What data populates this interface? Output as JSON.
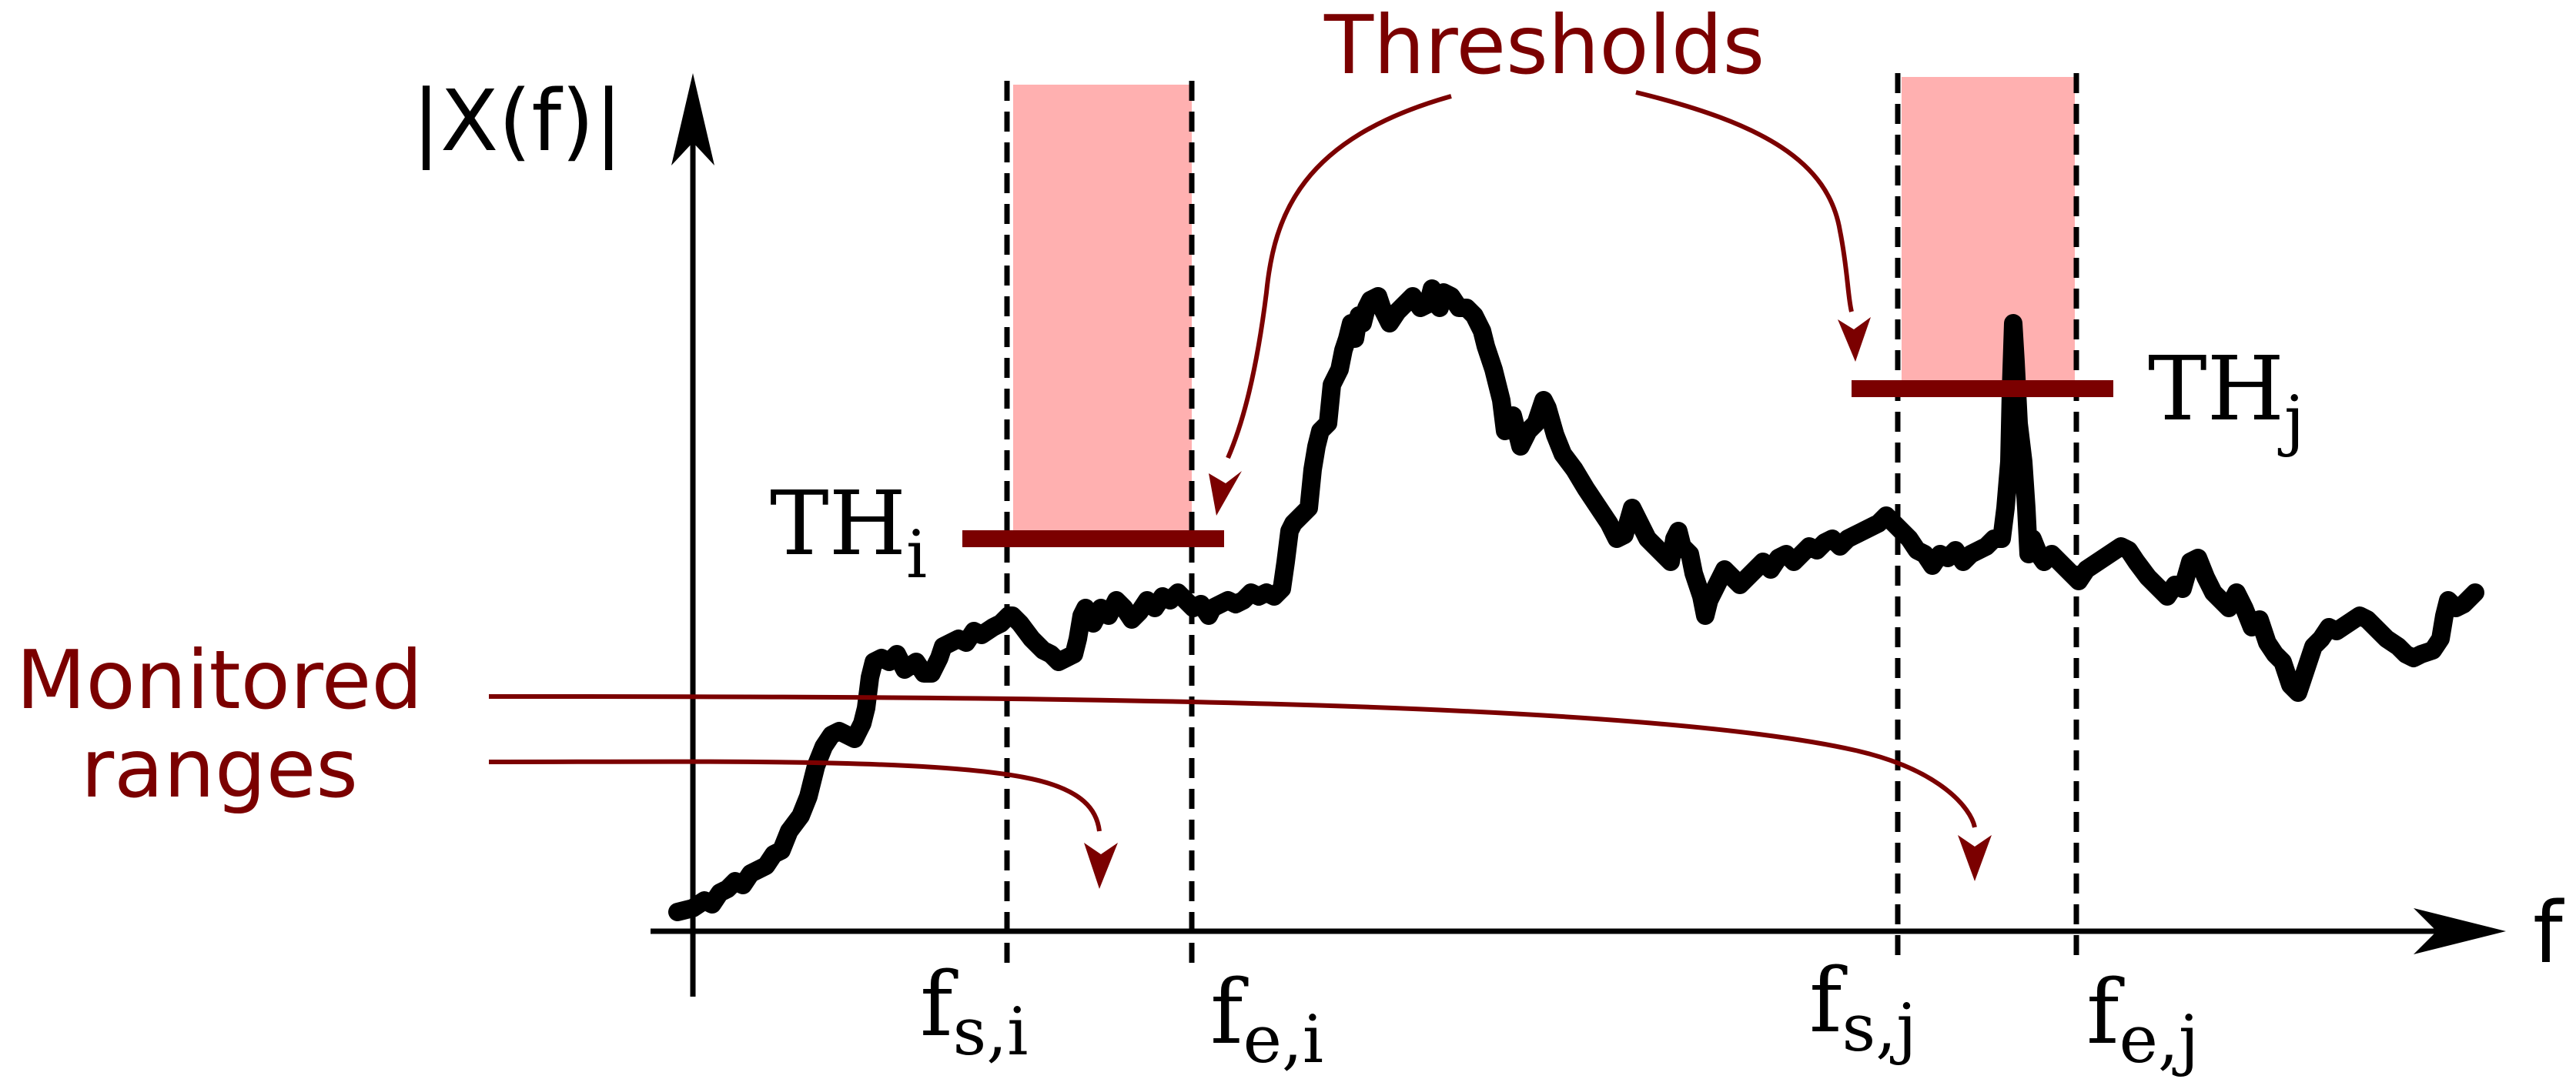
{
  "axis": {
    "y_label": "|X(f)|",
    "x_label": "f"
  },
  "callouts": {
    "thresholds": "Thresholds",
    "monitored_line1": "Monitored",
    "monitored_line2": "ranges"
  },
  "threshold_labels": {
    "i": {
      "main": "TH",
      "sub": "i"
    },
    "j": {
      "main": "TH",
      "sub": "j"
    }
  },
  "range_labels": {
    "fs_i": {
      "main": "f",
      "sub": "s,i"
    },
    "fe_i": {
      "main": "f",
      "sub": "e,i"
    },
    "fs_j": {
      "main": "f",
      "sub": "s,j"
    },
    "fe_j": {
      "main": "f",
      "sub": "e,j"
    }
  },
  "colors": {
    "accent": "#7b0000",
    "band": "#ffb0b0",
    "curve": "#000000"
  }
}
